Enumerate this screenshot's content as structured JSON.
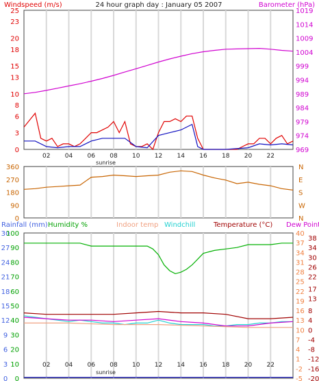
{
  "chart_data": [
    {
      "type": "line",
      "title": "24 hour graph day : January 05 2007",
      "x_ticks": [
        "02",
        "04",
        "06",
        "08",
        "10",
        "12",
        "14",
        "16",
        "18",
        "20",
        "22"
      ],
      "x_note": "sunrise",
      "left_axis": {
        "label": "Windspeed (m/s)",
        "ticks": [
          0,
          3,
          6,
          8,
          10,
          13,
          15,
          18,
          20,
          23,
          25
        ],
        "range": [
          0,
          25
        ]
      },
      "right_axis": {
        "label": "Barometer (hPa)",
        "ticks": [
          969,
          974,
          979,
          984,
          989,
          994,
          999,
          1004,
          1009,
          1014,
          1019
        ],
        "range": [
          969,
          1019
        ]
      },
      "series": [
        {
          "name": "Windspeed (m/s)",
          "axis": "left",
          "color": "#e00000",
          "x": [
            0,
            1,
            1.5,
            2,
            2.5,
            3,
            3.5,
            4,
            4.5,
            5,
            5.5,
            6,
            6.5,
            7,
            7.5,
            8,
            8.5,
            9,
            9.5,
            10,
            10.5,
            11,
            11.5,
            12,
            12.5,
            13,
            13.5,
            14,
            14.5,
            15,
            15.5,
            16,
            17,
            18,
            19,
            19.5,
            20,
            20.5,
            21,
            21.5,
            22,
            22.5,
            23,
            23.5,
            24
          ],
          "y": [
            4,
            6.5,
            2,
            1.5,
            2,
            0.5,
            1,
            1,
            0.5,
            1,
            2,
            3,
            3,
            3.5,
            4,
            5,
            3,
            5,
            1,
            0.5,
            0.5,
            1,
            0,
            3,
            5,
            5,
            5.5,
            5,
            6,
            6,
            2,
            0,
            0,
            0,
            0,
            0.5,
            1,
            1,
            2,
            2,
            1,
            2,
            2.5,
            1,
            1.5
          ]
        },
        {
          "name": "Gust",
          "axis": "left",
          "color": "#1010c0",
          "x": [
            0,
            1,
            2,
            3,
            4,
            5,
            6,
            7,
            8,
            9,
            10,
            11,
            12,
            13,
            14,
            15,
            15.5,
            16,
            18,
            20,
            21,
            22,
            23,
            24
          ],
          "y": [
            1.5,
            1.5,
            0.5,
            0.3,
            0.5,
            0.5,
            1.5,
            2,
            2,
            2,
            0.5,
            0.3,
            2.5,
            3,
            3.5,
            4.5,
            0.5,
            0,
            0,
            0.3,
            1,
            0.8,
            1,
            0.8
          ]
        },
        {
          "name": "Barometer (hPa)",
          "axis": "right",
          "color": "#d000d0",
          "x": [
            0,
            1,
            2,
            3,
            4,
            5,
            6,
            7,
            8,
            9,
            10,
            11,
            12,
            13,
            14,
            15,
            16,
            17,
            18,
            19,
            20,
            21,
            22,
            23,
            24
          ],
          "y": [
            989,
            989.5,
            990.2,
            991,
            991.8,
            992.6,
            993.5,
            994.5,
            995.6,
            996.8,
            998,
            999.2,
            1000.4,
            1001.5,
            1002.5,
            1003.4,
            1004.1,
            1004.6,
            1005,
            1005.1,
            1005.2,
            1005.3,
            1005,
            1004.6,
            1004.3
          ]
        }
      ]
    },
    {
      "type": "line",
      "left_axis": {
        "ticks": [
          0,
          90,
          180,
          270,
          360
        ],
        "range": [
          0,
          360
        ]
      },
      "right_axis": {
        "ticks": [
          "N",
          "W",
          "S",
          "E",
          "N"
        ]
      },
      "x_ticks": [
        "02",
        "04",
        "06",
        "08",
        "10",
        "12",
        "14",
        "16",
        "18",
        "20",
        "22"
      ],
      "series": [
        {
          "name": "Wind direction",
          "color": "#c86400",
          "x": [
            0,
            1,
            2,
            3,
            4,
            5,
            6,
            7,
            8,
            9,
            10,
            11,
            12,
            13,
            14,
            15,
            16,
            17,
            18,
            19,
            20,
            21,
            22,
            23,
            24
          ],
          "y": [
            200,
            205,
            215,
            220,
            225,
            230,
            285,
            290,
            300,
            295,
            290,
            295,
            300,
            320,
            330,
            325,
            300,
            280,
            265,
            240,
            250,
            235,
            225,
            205,
            195
          ]
        }
      ]
    },
    {
      "type": "line",
      "legend": [
        "Rainfall (mm)",
        "Humidity %",
        "Indoor temp",
        "Windchill",
        "Temperature (°C)",
        "Dew Point"
      ],
      "x_ticks": [
        "02",
        "04",
        "06",
        "08",
        "10",
        "12",
        "14",
        "16",
        "18",
        "20",
        "22"
      ],
      "x_note": "sunrise",
      "axis_rainfall": {
        "ticks": [
          0,
          3,
          6,
          9,
          12,
          15,
          18,
          21,
          24,
          27,
          30
        ],
        "range": [
          0,
          30
        ]
      },
      "axis_humidity": {
        "ticks": [
          0,
          10,
          20,
          30,
          40,
          50,
          60,
          70,
          80,
          90,
          100
        ],
        "range": [
          0,
          100
        ]
      },
      "axis_temp_left": {
        "ticks": [
          -5,
          -2,
          1,
          4,
          7,
          10,
          13,
          16,
          19,
          22,
          25,
          28,
          31,
          34,
          37,
          40
        ],
        "range": [
          -5,
          40
        ]
      },
      "axis_temp_right": {
        "ticks": [
          -20,
          -16,
          -12,
          -8,
          -4,
          0,
          4,
          8,
          13,
          17,
          22,
          26,
          30,
          34,
          38
        ],
        "range": [
          -20,
          40
        ]
      },
      "series": [
        {
          "name": "Humidity %",
          "axis": "humidity",
          "color": "#00b000",
          "x": [
            0,
            1,
            2,
            3,
            4,
            5,
            6,
            7,
            8,
            9,
            10,
            11,
            11.5,
            12,
            12.5,
            13,
            13.5,
            14,
            14.5,
            15,
            15.5,
            16,
            17,
            18,
            19,
            20,
            21,
            22,
            23,
            24
          ],
          "y": [
            93,
            93,
            93,
            93,
            93,
            93,
            91,
            91,
            91,
            91,
            91,
            91,
            89,
            85,
            78,
            74,
            72,
            73,
            75,
            78,
            82,
            86,
            88,
            89,
            90,
            92,
            92,
            92,
            93,
            93
          ]
        },
        {
          "name": "Temperature (°C)",
          "axis": "humidity",
          "color": "#a00000",
          "x": [
            0,
            2,
            4,
            6,
            8,
            10,
            12,
            14,
            16,
            18,
            20,
            22,
            24
          ],
          "y": [
            45,
            44,
            44,
            44,
            44,
            45,
            46,
            45,
            45,
            44,
            41,
            41,
            42
          ]
        },
        {
          "name": "Windchill",
          "axis": "humidity",
          "color": "#20d0d0",
          "x": [
            0,
            1,
            2,
            3,
            4,
            5,
            6,
            7,
            8,
            9,
            10,
            11,
            12,
            13,
            14,
            15,
            16,
            17,
            18,
            19,
            20,
            21,
            22,
            23,
            24
          ],
          "y": [
            43,
            42,
            41,
            40,
            39,
            40,
            39,
            38,
            38,
            37,
            38,
            38,
            40,
            38,
            37,
            37,
            37,
            36,
            36,
            37,
            37,
            38,
            38,
            39,
            39
          ]
        },
        {
          "name": "Dew Point",
          "axis": "humidity",
          "color": "#d000d0",
          "x": [
            0,
            2,
            4,
            6,
            8,
            10,
            12,
            14,
            16,
            18,
            20,
            22,
            24
          ],
          "y": [
            42,
            41,
            40,
            40,
            39,
            40,
            41,
            39,
            38,
            36,
            36,
            38,
            39
          ]
        },
        {
          "name": "Indoor temp",
          "axis": "humidity",
          "color": "#f0a080",
          "x": [
            0,
            4,
            8,
            12,
            16,
            20,
            24
          ],
          "y": [
            38,
            38,
            37,
            37,
            36,
            35,
            35
          ]
        },
        {
          "name": "Rainfall (mm)",
          "axis": "rainfall",
          "color": "#2020c0",
          "x": [
            0,
            24
          ],
          "y": [
            0.2,
            0.2
          ]
        }
      ]
    }
  ]
}
